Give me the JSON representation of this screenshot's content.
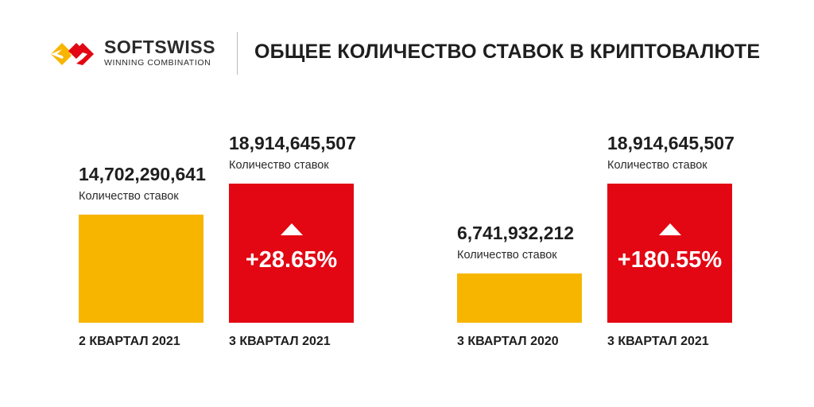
{
  "brand": {
    "name": "SOFTSWISS",
    "tagline": "WINNING COMBINATION"
  },
  "title": "ОБЩЕЕ КОЛИЧЕСТВО СТАВОК В КРИПТОВАЛЮТЕ",
  "colors": {
    "previous": "#F7B500",
    "current": "#E30613",
    "logo_yellow": "#F7B500",
    "logo_red": "#E30613"
  },
  "chart_data": [
    {
      "type": "bar",
      "categories": [
        "2 КВАРТАЛ 2021",
        "3 КВАРТАЛ 2021"
      ],
      "values": [
        14702290641,
        18914645507
      ],
      "value_labels": [
        "14,702,290,641",
        "18,914,645,507"
      ],
      "unit_labels": [
        "Количество ставок",
        "Количество ставок"
      ],
      "change": "+28.65%"
    },
    {
      "type": "bar",
      "categories": [
        "3 КВАРТАЛ 2020",
        "3 КВАРТАЛ 2021"
      ],
      "values": [
        6741932212,
        18914645507
      ],
      "value_labels": [
        "6,741,932,212",
        "18,914,645,507"
      ],
      "unit_labels": [
        "Количество ставок",
        "Количество ставок"
      ],
      "change": "+180.55%"
    }
  ]
}
